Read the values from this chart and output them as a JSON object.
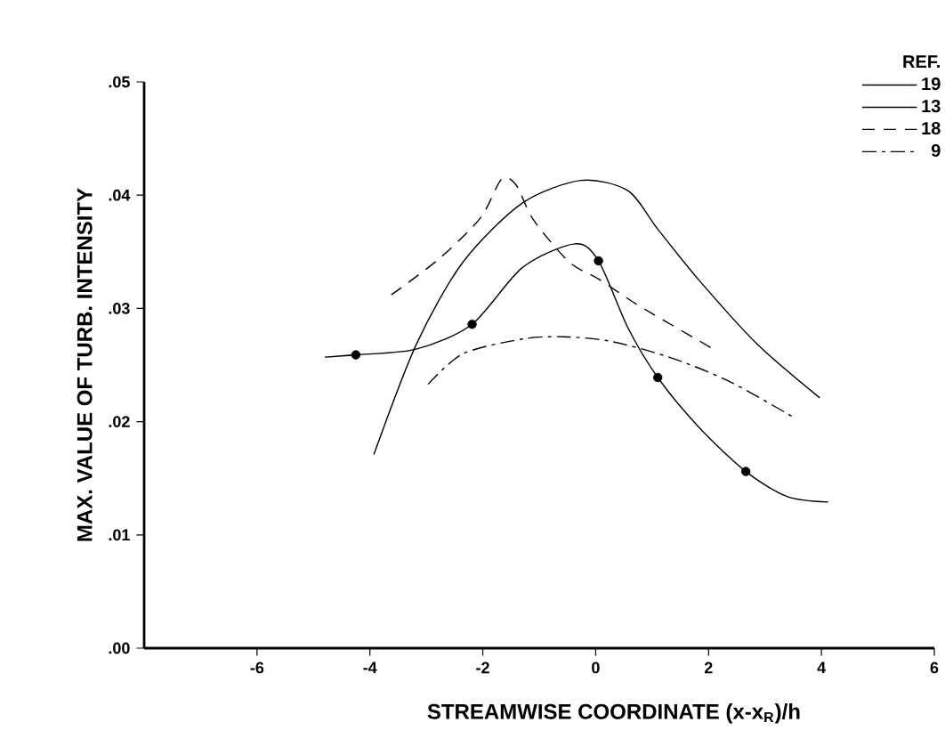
{
  "chart_data": {
    "type": "line",
    "xlabel": "STREAMWISE COORDINATE (x-x$_{R}$)/h",
    "ylabel": "MAX. VALUE OF TURB. INTENSITY",
    "legend_title": "REF.",
    "legend": "top right",
    "xlim": [
      -8,
      6
    ],
    "xticks": [
      -6,
      -4,
      -2,
      0,
      2,
      4,
      6
    ],
    "ylim": [
      0,
      0.05
    ],
    "yticks": [
      {
        "value": 0,
        "label": ".00"
      },
      {
        "value": 0.01,
        "label": ".01"
      },
      {
        "value": 0.02,
        "label": ".02"
      },
      {
        "value": 0.03,
        "label": ".03"
      },
      {
        "value": 0.04,
        "label": ".04"
      },
      {
        "value": 0.05,
        "label": ".05"
      }
    ],
    "series": [
      {
        "name": "19",
        "color": "#000000",
        "line_style": "solid",
        "x": [
          -3.93,
          -3.18,
          -2.35,
          -1.3,
          -0.26,
          0.57,
          1.1,
          1.83,
          2.87,
          3.97
        ],
        "values": [
          0.0171,
          0.0268,
          0.0341,
          0.0393,
          0.0413,
          0.0404,
          0.037,
          0.0325,
          0.0268,
          0.0221
        ]
      },
      {
        "name": "13",
        "color": "#000000",
        "line_style": "solid",
        "x": [
          -4.8,
          -4.25,
          -3.18,
          -2.19,
          -1.3,
          -0.37,
          0.05,
          0.57,
          1.1,
          1.83,
          2.66,
          3.39,
          4.12
        ],
        "values": [
          0.0257,
          0.0259,
          0.0264,
          0.0286,
          0.0336,
          0.0357,
          0.0342,
          0.0283,
          0.0239,
          0.0195,
          0.0156,
          0.0134,
          0.0129
        ]
      },
      {
        "type": "scatter",
        "marker": "circle",
        "color": "#000000",
        "x": [
          -4.25,
          -2.19,
          0.05,
          1.1,
          2.66
        ],
        "values": [
          0.0259,
          0.0286,
          0.0342,
          0.0239,
          0.0156
        ]
      },
      {
        "name": "18",
        "color": "#000000",
        "line_style": "dashed",
        "x": [
          -3.62,
          -2.77,
          -2.04,
          -1.67,
          -1.41,
          -1.1,
          -0.47,
          0.05,
          0.78,
          2.09
        ],
        "values": [
          0.0312,
          0.0344,
          0.038,
          0.0414,
          0.0409,
          0.0378,
          0.0341,
          0.0326,
          0.0302,
          0.0264
        ]
      },
      {
        "name": "9",
        "color": "#000000",
        "line_style": "dashdot",
        "x": [
          -2.97,
          -2.35,
          -1.3,
          -0.57,
          0.26,
          1.3,
          2.35,
          3.5
        ],
        "values": [
          0.0233,
          0.026,
          0.0273,
          0.0275,
          0.0271,
          0.0257,
          0.0236,
          0.0204
        ]
      }
    ]
  }
}
